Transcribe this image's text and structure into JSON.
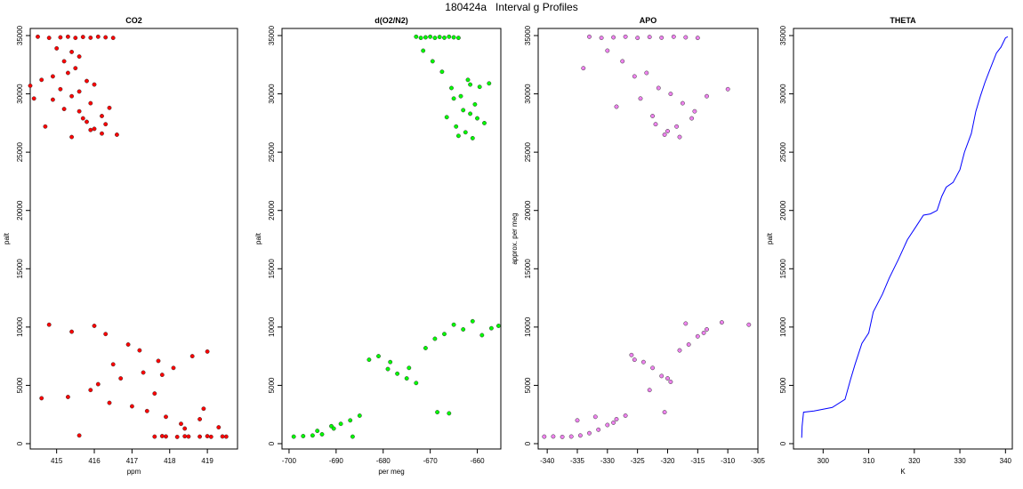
{
  "figure_title": "180424a   Interval g Profiles",
  "chart_data": [
    {
      "type": "scatter",
      "title": "CO2",
      "xlabel": "ppm",
      "ylabel": "palt",
      "xlim": [
        414.3,
        419.8
      ],
      "ylim": [
        0,
        35000
      ],
      "xticks": [
        415,
        416,
        417,
        418,
        419
      ],
      "yticks": [
        0,
        5000,
        10000,
        15000,
        20000,
        25000,
        30000,
        35000
      ],
      "grid": false,
      "legend": "none",
      "fill_color": "#ff0000",
      "series": [
        {
          "x": [
            414.5,
            414.8,
            415.1,
            415.3,
            415.5,
            415.7,
            415.9,
            416.1,
            416.3,
            416.5,
            414.3,
            414.6,
            414.9,
            415.2,
            415.4,
            415.6,
            415.8,
            416.0,
            416.2,
            416.4,
            415.0,
            415.3,
            415.6,
            415.9,
            416.2,
            414.7,
            415.4,
            415.8,
            416.6,
            414.4,
            415.1,
            415.5,
            415.7,
            416.0,
            415.2,
            415.9,
            416.3,
            415.6,
            414.9,
            415.4
          ],
          "y": [
            34900,
            34800,
            34850,
            34900,
            34800,
            34880,
            34820,
            34900,
            34850,
            34800,
            30700,
            31200,
            29500,
            32800,
            33600,
            28500,
            27600,
            27000,
            26600,
            28800,
            33900,
            31800,
            30200,
            29200,
            28100,
            27200,
            29800,
            31100,
            26500,
            29600,
            30400,
            32200,
            27900,
            30800,
            28700,
            26900,
            27400,
            33200,
            31500,
            26300
          ]
        },
        {
          "x": [
            414.8,
            415.4,
            416.0,
            416.3,
            416.9,
            417.2,
            417.7,
            418.1,
            418.6,
            419.0,
            414.6,
            415.3,
            415.9,
            416.4,
            417.0,
            417.4,
            417.9,
            418.3,
            418.8,
            419.3,
            416.1,
            416.7,
            417.3,
            417.8,
            418.4,
            419.5,
            415.6,
            416.5,
            417.6,
            418.9
          ],
          "y": [
            10200,
            9600,
            10100,
            9400,
            8500,
            8000,
            7100,
            6500,
            7500,
            7900,
            3900,
            4000,
            4600,
            3500,
            3200,
            2800,
            2300,
            1700,
            2100,
            1400,
            5100,
            5600,
            6100,
            5900,
            1300,
            600,
            700,
            6800,
            4300,
            3000
          ]
        },
        {
          "x": [
            417.6,
            417.9,
            418.2,
            418.5,
            418.8,
            419.1,
            419.4,
            417.8,
            418.4,
            419.0
          ],
          "y": [
            600,
            620,
            580,
            610,
            600,
            590,
            620,
            650,
            630,
            640
          ]
        }
      ]
    },
    {
      "type": "scatter",
      "title": "d(O2/N2)",
      "xlabel": "per meg",
      "ylabel": "palt",
      "xlim": [
        -701.5,
        -655
      ],
      "ylim": [
        0,
        35000
      ],
      "xticks": [
        -700,
        -690,
        -680,
        -670,
        -660
      ],
      "yticks": [
        0,
        5000,
        10000,
        15000,
        20000,
        25000,
        30000,
        35000
      ],
      "grid": false,
      "legend": "none",
      "fill_color": "#00ff00",
      "series": [
        {
          "x": [
            -673.0,
            -672.0,
            -671.0,
            -670.0,
            -669.0,
            -668.0,
            -667.0,
            -666.0,
            -665.0,
            -664.0,
            -671.5,
            -669.5,
            -667.5,
            -665.5,
            -663.5,
            -661.5,
            -659.5,
            -657.5,
            -666.5,
            -664.5,
            -662.5,
            -660.5,
            -658.5,
            -663.0,
            -661.0,
            -665.0,
            -662.0,
            -660.0,
            -664.0,
            -661.5
          ],
          "y": [
            34900,
            34800,
            34850,
            34900,
            34800,
            34880,
            34820,
            34900,
            34850,
            34800,
            33700,
            32800,
            31900,
            30500,
            29800,
            30800,
            30600,
            30900,
            28000,
            27200,
            26700,
            29100,
            27500,
            28600,
            26200,
            29600,
            31200,
            27900,
            26400,
            28300
          ]
        },
        {
          "x": [
            -699.0,
            -697.0,
            -695.0,
            -693.0,
            -691.0,
            -689.0,
            -687.0,
            -685.0,
            -683.0,
            -681.0,
            -679.0,
            -677.0,
            -675.0,
            -673.0,
            -671.0,
            -669.0,
            -667.0,
            -665.0,
            -663.0,
            -661.0,
            -659.0,
            -657.0,
            -655.5,
            -694.0,
            -690.5,
            -686.5,
            -678.5,
            -674.5,
            -668.5,
            -666.0
          ],
          "y": [
            600,
            650,
            700,
            800,
            1500,
            1700,
            2000,
            2400,
            7200,
            7500,
            6400,
            6000,
            5600,
            5200,
            8200,
            9000,
            9400,
            10200,
            9800,
            10500,
            9300,
            9900,
            10100,
            1100,
            1300,
            600,
            7000,
            6500,
            2700,
            2600
          ]
        }
      ]
    },
    {
      "type": "scatter",
      "title": "APO",
      "xlabel": "",
      "ylabel": "approx. per meg",
      "xlim": [
        -341.5,
        -305
      ],
      "ylim": [
        0,
        35000
      ],
      "xticks": [
        -340,
        -335,
        -330,
        -325,
        -320,
        -315,
        -310,
        -305
      ],
      "yticks": [
        0,
        5000,
        10000,
        15000,
        20000,
        25000,
        30000,
        35000
      ],
      "grid": false,
      "legend": "none",
      "fill_color": "#ee82ee",
      "series": [
        {
          "x": [
            -333.0,
            -331.0,
            -329.0,
            -327.0,
            -325.0,
            -323.0,
            -321.0,
            -319.0,
            -317.0,
            -315.0,
            -330.0,
            -327.5,
            -325.5,
            -323.5,
            -321.5,
            -319.5,
            -317.5,
            -315.5,
            -313.5,
            -310.0,
            -334.0,
            -328.5,
            -322.0,
            -320.0,
            -318.0,
            -316.0,
            -324.5,
            -322.5,
            -320.5,
            -318.5
          ],
          "y": [
            34900,
            34800,
            34850,
            34900,
            34800,
            34880,
            34820,
            34900,
            34850,
            34800,
            33700,
            32800,
            31500,
            31800,
            30500,
            30000,
            29200,
            28500,
            29800,
            30400,
            32200,
            28900,
            27400,
            26800,
            26300,
            27900,
            29600,
            28100,
            26500,
            27200
          ]
        },
        {
          "x": [
            -340.5,
            -339.0,
            -337.5,
            -336.0,
            -334.5,
            -333.0,
            -331.5,
            -330.0,
            -328.5,
            -327.0,
            -325.5,
            -324.0,
            -322.5,
            -321.0,
            -319.5,
            -318.0,
            -316.5,
            -315.0,
            -313.5,
            -311.0,
            -326.0,
            -323.0,
            -320.0,
            -317.0,
            -314.0,
            -335.0,
            -332.0,
            -329.0,
            -306.5,
            -320.5
          ],
          "y": [
            600,
            620,
            580,
            610,
            700,
            900,
            1200,
            1600,
            2100,
            2400,
            7200,
            7000,
            6500,
            5800,
            5300,
            8000,
            8500,
            9200,
            9800,
            10400,
            7600,
            4600,
            5600,
            10300,
            9500,
            2000,
            2300,
            1800,
            10200,
            2700
          ]
        }
      ]
    },
    {
      "type": "line",
      "title": "THETA",
      "xlabel": "K",
      "ylabel": "palt",
      "xlim": [
        293.5,
        341.5
      ],
      "ylim": [
        0,
        35000
      ],
      "xticks": [
        300,
        310,
        320,
        330,
        340
      ],
      "yticks": [
        0,
        5000,
        10000,
        15000,
        20000,
        25000,
        30000,
        35000
      ],
      "grid": false,
      "legend": "none",
      "line_color": "#0000ff",
      "series": [
        {
          "x": [
            295.3,
            295.4,
            295.7,
            298.0,
            302.0,
            304.8,
            306.0,
            307.0,
            308.5,
            310.0,
            311.0,
            313.0,
            314.5,
            316.5,
            318.5,
            320.5,
            322.0,
            323.5,
            325.0,
            326.0,
            327.0,
            328.5,
            330.0,
            331.0,
            332.5,
            333.5,
            334.5,
            335.5,
            336.5,
            338.0,
            339.0,
            340.0,
            340.5
          ],
          "y": [
            500,
            1500,
            2700,
            2800,
            3100,
            3800,
            5500,
            6800,
            8600,
            9500,
            11300,
            12800,
            14200,
            15800,
            17500,
            18700,
            19600,
            19700,
            20000,
            21200,
            22000,
            22400,
            23500,
            25000,
            26600,
            28500,
            29800,
            31000,
            32000,
            33500,
            34000,
            34800,
            34900
          ]
        }
      ]
    }
  ]
}
